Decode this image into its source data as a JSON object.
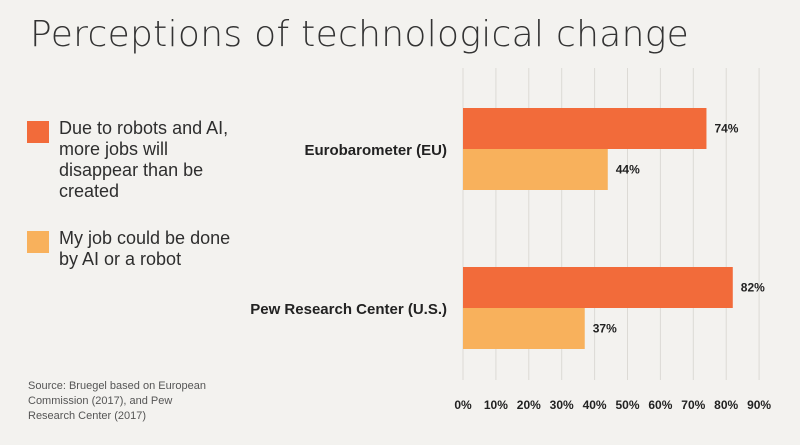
{
  "title": "Perceptions of technological change",
  "legend": [
    {
      "label": "Due to robots and AI, more jobs will disappear than be created",
      "color": "#f26b3a"
    },
    {
      "label": "My job could be done by AI or a robot",
      "color": "#f8b15c"
    }
  ],
  "source": "Source: Bruegel based on European Commission (2017), and Pew Research Center (2017)",
  "chart_data": {
    "type": "bar",
    "orientation": "horizontal",
    "categories": [
      "Eurobarometer (EU)",
      "Pew Research Center (U.S.)"
    ],
    "series": [
      {
        "values": [
          74,
          82
        ],
        "color": "#f26b3a"
      },
      {
        "values": [
          44,
          37
        ],
        "color": "#f8b15c"
      }
    ],
    "value_labels": [
      [
        "74%",
        "82%"
      ],
      [
        "44%",
        "37%"
      ]
    ],
    "xlim": [
      0,
      90
    ],
    "xticks": [
      "0%",
      "10%",
      "20%",
      "30%",
      "40%",
      "50%",
      "60%",
      "70%",
      "80%",
      "90%"
    ],
    "grid": true,
    "legend_position": "left"
  }
}
